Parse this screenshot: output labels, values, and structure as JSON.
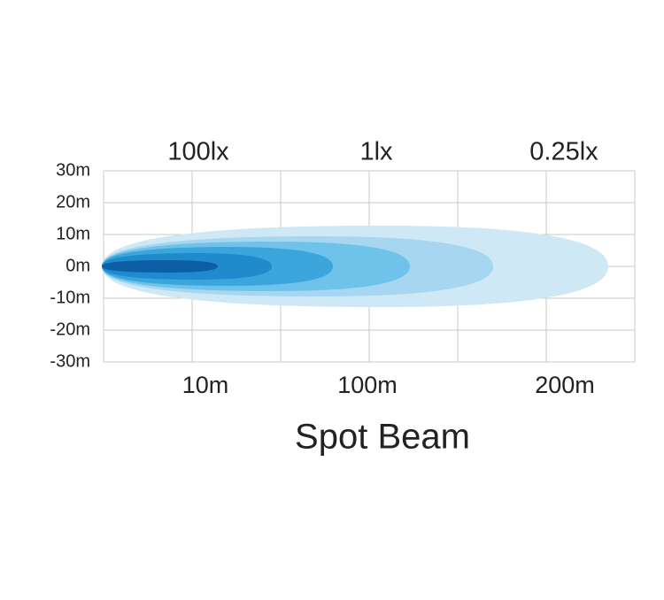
{
  "title": "Spot Beam",
  "y_axis": {
    "labels": [
      "30m",
      "20m",
      "10m",
      "0m",
      "-10m",
      "-20m",
      "-30m"
    ]
  },
  "x_axis": {
    "labels": [
      "10m",
      "100m",
      "200m"
    ]
  },
  "illuminance": {
    "labels": [
      "100lx",
      "1lx",
      "0.25lx"
    ]
  }
}
